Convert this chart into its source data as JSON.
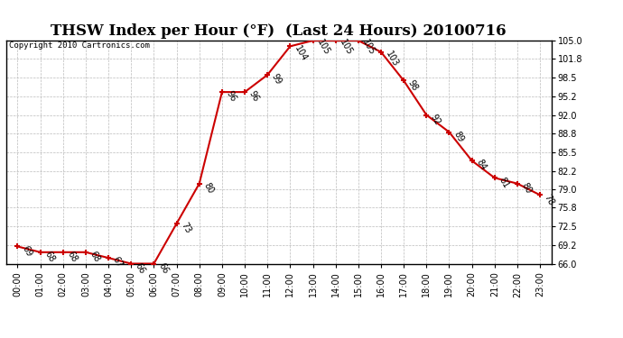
{
  "title": "THSW Index per Hour (°F)  (Last 24 Hours) 20100716",
  "copyright": "Copyright 2010 Cartronics.com",
  "hours": [
    "00:00",
    "01:00",
    "02:00",
    "03:00",
    "04:00",
    "05:00",
    "06:00",
    "07:00",
    "08:00",
    "09:00",
    "10:00",
    "11:00",
    "12:00",
    "13:00",
    "14:00",
    "15:00",
    "16:00",
    "17:00",
    "18:00",
    "19:00",
    "20:00",
    "21:00",
    "22:00",
    "23:00"
  ],
  "values": [
    69,
    68,
    68,
    68,
    67,
    66,
    66,
    73,
    80,
    96,
    96,
    99,
    104,
    105,
    105,
    105,
    103,
    98,
    92,
    89,
    84,
    81,
    80,
    78
  ],
  "ylim": [
    66.0,
    105.0
  ],
  "yticks": [
    66.0,
    69.2,
    72.5,
    75.8,
    79.0,
    82.2,
    85.5,
    88.8,
    92.0,
    95.2,
    98.5,
    101.8,
    105.0
  ],
  "line_color": "#cc0000",
  "marker_color": "#cc0000",
  "bg_color": "#ffffff",
  "grid_color": "#bbbbbb",
  "title_fontsize": 12,
  "label_fontsize": 7,
  "annotation_fontsize": 7,
  "copyright_fontsize": 6.5
}
